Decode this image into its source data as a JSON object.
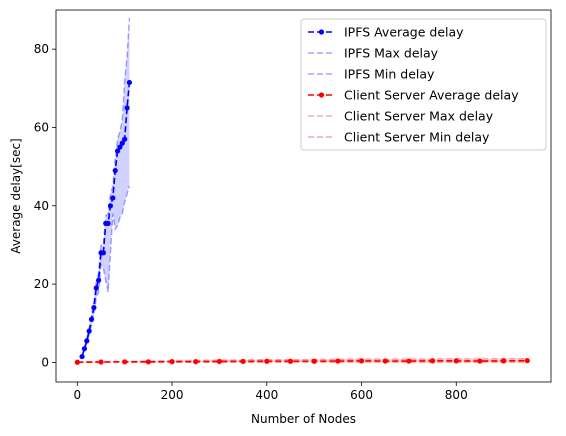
{
  "chart_data": {
    "type": "line",
    "title": "",
    "xlabel": "Number of Nodes",
    "ylabel": "Average delay[sec]",
    "xlim": [
      -45,
      1000
    ],
    "ylim": [
      -5,
      90
    ],
    "xticks": [
      0,
      200,
      400,
      600,
      800
    ],
    "yticks": [
      0,
      20,
      40,
      60,
      80
    ],
    "grid": false,
    "legend": "top-right",
    "legend_entries": [
      {
        "label": "IPFS Average delay",
        "color": "#0000ff",
        "style": "dashed-marker"
      },
      {
        "label": "IPFS Max delay",
        "color": "#0000ff",
        "style": "dashed-faint"
      },
      {
        "label": "IPFS Min delay",
        "color": "#0000ff",
        "style": "dashed-faint"
      },
      {
        "label": "Client Server Average delay",
        "color": "#ff0000",
        "style": "dashed-marker"
      },
      {
        "label": "Client Server Max delay",
        "color": "#ff0000",
        "style": "dashed-faint"
      },
      {
        "label": "Client Server Min delay",
        "color": "#ff0000",
        "style": "dashed-faint"
      }
    ],
    "series": [
      {
        "name": "IPFS Average delay",
        "color": "#0000ff",
        "x": [
          10,
          15,
          20,
          25,
          30,
          35,
          40,
          45,
          50,
          55,
          60,
          65,
          70,
          75,
          80,
          85,
          90,
          95,
          100,
          105,
          110
        ],
        "y": [
          1.5,
          3.5,
          5.5,
          8,
          11,
          14,
          19,
          21,
          28,
          28,
          35.5,
          35.5,
          40,
          42,
          49,
          54,
          55,
          56,
          57,
          65,
          71.5
        ]
      },
      {
        "name": "IPFS Max delay",
        "color": "#0000ff",
        "x": [
          10,
          15,
          20,
          25,
          30,
          35,
          40,
          45,
          50,
          55,
          60,
          65,
          70,
          75,
          80,
          85,
          90,
          95,
          100,
          105,
          110
        ],
        "y": [
          1.5,
          3.8,
          6,
          8.8,
          12,
          15.5,
          20.5,
          23,
          30,
          30,
          37.5,
          38,
          43,
          45,
          52,
          57,
          59,
          62,
          72,
          78,
          88
        ]
      },
      {
        "name": "IPFS Min delay",
        "color": "#0000ff",
        "x": [
          10,
          15,
          20,
          25,
          30,
          35,
          40,
          45,
          50,
          55,
          60,
          65,
          70,
          75,
          80,
          85,
          90,
          95,
          100,
          105,
          110
        ],
        "y": [
          1.5,
          3.2,
          5,
          7,
          9.5,
          12,
          16.5,
          18,
          25,
          24,
          21,
          18,
          28,
          38,
          34,
          35,
          37,
          38,
          41,
          43,
          45
        ]
      },
      {
        "name": "Client Server Average delay",
        "color": "#ff0000",
        "x": [
          0,
          50,
          100,
          150,
          200,
          250,
          300,
          350,
          400,
          450,
          500,
          550,
          600,
          650,
          700,
          750,
          800,
          850,
          900,
          950
        ],
        "y": [
          0.05,
          0.1,
          0.15,
          0.15,
          0.2,
          0.2,
          0.25,
          0.25,
          0.3,
          0.3,
          0.3,
          0.35,
          0.4,
          0.35,
          0.35,
          0.4,
          0.4,
          0.35,
          0.4,
          0.45
        ]
      },
      {
        "name": "Client Server Max delay",
        "color": "#ff0000",
        "x": [
          0,
          50,
          100,
          150,
          200,
          250,
          300,
          350,
          400,
          450,
          500,
          550,
          600,
          650,
          700,
          750,
          800,
          850,
          900,
          950
        ],
        "y": [
          0.1,
          0.2,
          0.3,
          0.35,
          0.45,
          0.5,
          0.6,
          0.65,
          0.7,
          0.7,
          0.75,
          0.8,
          0.9,
          0.85,
          0.85,
          0.9,
          0.95,
          0.9,
          0.95,
          1.0
        ]
      },
      {
        "name": "Client Server Min delay",
        "color": "#ff0000",
        "x": [
          0,
          50,
          100,
          150,
          200,
          250,
          300,
          350,
          400,
          450,
          500,
          550,
          600,
          650,
          700,
          750,
          800,
          850,
          900,
          950
        ],
        "y": [
          0.02,
          0.05,
          0.05,
          0.05,
          0.05,
          0.05,
          0.05,
          0.05,
          0.05,
          0.05,
          0.05,
          0.05,
          0.05,
          0.05,
          0.05,
          0.05,
          0.05,
          0.05,
          0.05,
          0.05
        ]
      }
    ]
  }
}
